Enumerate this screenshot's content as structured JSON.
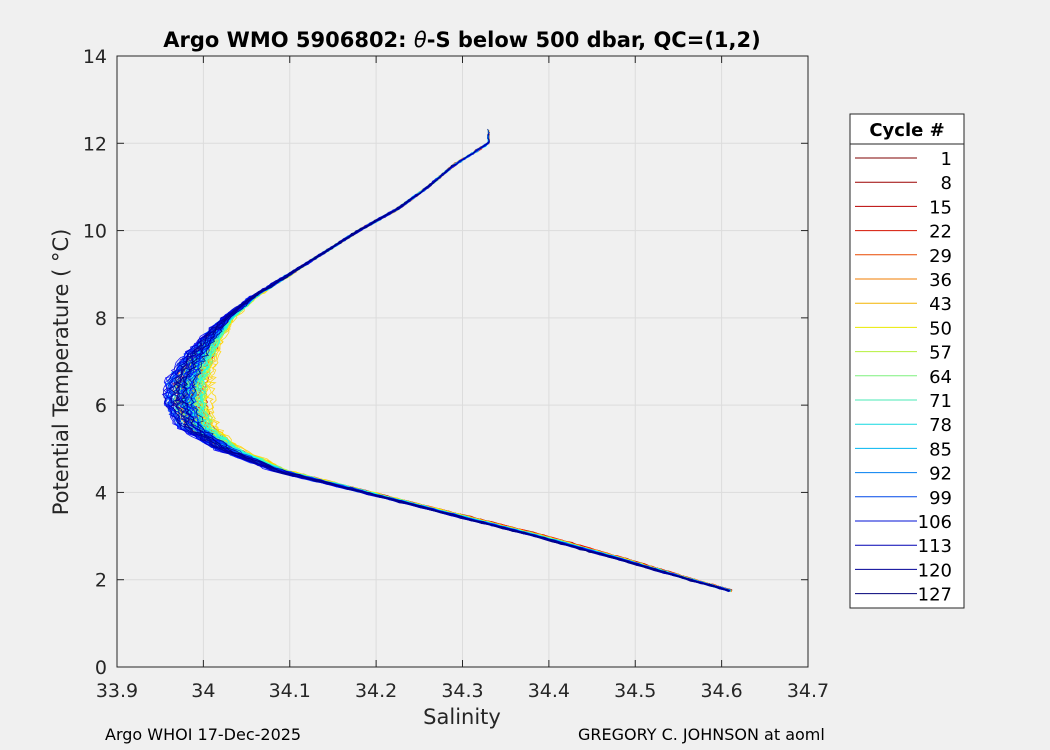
{
  "chart_data": {
    "type": "line",
    "title": "Argo WMO 5906802: θ-S below 500 dbar,  QC=(1,2)",
    "title_prefix": "Argo WMO 5906802: ",
    "title_theta": "θ",
    "title_suffix": "-S below 500 dbar,  QC=(1,2)",
    "xlabel": "Salinity",
    "ylabel": "Potential Temperature ( °C)",
    "xlim": [
      33.9,
      34.7
    ],
    "ylim": [
      0,
      14
    ],
    "xticks": [
      "33.9",
      "34",
      "34.1",
      "34.2",
      "34.3",
      "34.4",
      "34.5",
      "34.6",
      "34.7"
    ],
    "yticks": [
      "0",
      "2",
      "4",
      "6",
      "8",
      "10",
      "12",
      "14"
    ],
    "grid": true,
    "legend_title": "Cycle #",
    "legend_position": "right",
    "legend": [
      {
        "label": "1",
        "color": "#7f0000"
      },
      {
        "label": "8",
        "color": "#9b0000"
      },
      {
        "label": "15",
        "color": "#b80000"
      },
      {
        "label": "22",
        "color": "#d41200"
      },
      {
        "label": "29",
        "color": "#e84800"
      },
      {
        "label": "36",
        "color": "#f07e00"
      },
      {
        "label": "43",
        "color": "#f3b400"
      },
      {
        "label": "50",
        "color": "#eaea00"
      },
      {
        "label": "57",
        "color": "#b4f03c"
      },
      {
        "label": "64",
        "color": "#7ef07e"
      },
      {
        "label": "71",
        "color": "#48e8b4"
      },
      {
        "label": "78",
        "color": "#12d8e0"
      },
      {
        "label": "85",
        "color": "#00b4f0"
      },
      {
        "label": "92",
        "color": "#007ef0"
      },
      {
        "label": "99",
        "color": "#0048e8"
      },
      {
        "label": "106",
        "color": "#0012d4"
      },
      {
        "label": "113",
        "color": "#0000b4"
      },
      {
        "label": "120",
        "color": "#000096"
      },
      {
        "label": "127",
        "color": "#000078"
      }
    ],
    "base_profile": {
      "theta": [
        1.75,
        2.0,
        2.5,
        3.0,
        3.5,
        4.0,
        4.5,
        5.0,
        5.5,
        6.0,
        6.5,
        7.0,
        7.5,
        8.0,
        8.5,
        9.0,
        9.5,
        10.0,
        10.5,
        11.0,
        11.5,
        12.0
      ],
      "salinity": [
        34.61,
        34.565,
        34.48,
        34.39,
        34.29,
        34.19,
        34.09,
        34.03,
        33.995,
        33.985,
        33.985,
        33.995,
        34.01,
        34.03,
        34.06,
        34.1,
        34.14,
        34.18,
        34.225,
        34.26,
        34.29,
        34.33
      ]
    },
    "profile_count": 127
  },
  "footer": {
    "left": "Argo WHOI 17-Dec-2025",
    "right": "GREGORY C. JOHNSON at aoml"
  }
}
